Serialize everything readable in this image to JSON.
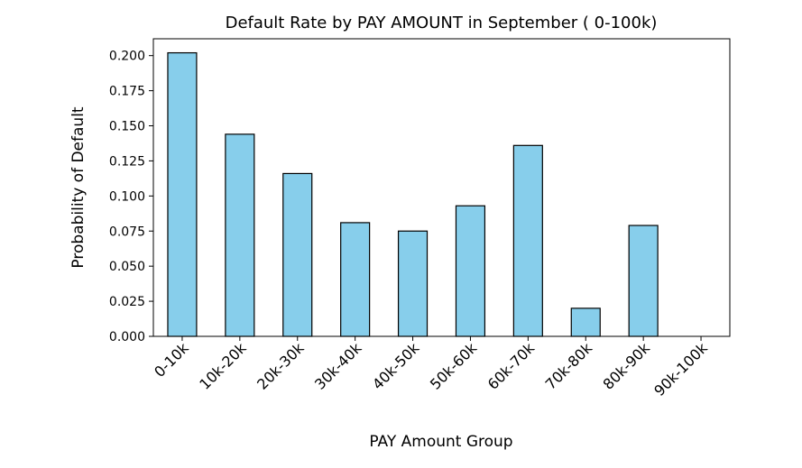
{
  "chart_data": {
    "type": "bar",
    "title": "Default Rate by PAY AMOUNT in September ( 0-100k)",
    "xlabel": "PAY Amount Group",
    "ylabel": "Probability of Default",
    "categories": [
      "0-10k",
      "10k-20k",
      "20k-30k",
      "30k-40k",
      "40k-50k",
      "50k-60k",
      "60k-70k",
      "70k-80k",
      "80k-90k",
      "90k-100k"
    ],
    "values": [
      0.202,
      0.144,
      0.116,
      0.081,
      0.075,
      0.093,
      0.136,
      0.02,
      0.079,
      0.0
    ],
    "ylim": [
      0,
      0.212
    ],
    "yticks": [
      "0.000",
      "0.025",
      "0.050",
      "0.075",
      "0.100",
      "0.125",
      "0.150",
      "0.175",
      "0.200"
    ],
    "bar_color": "#87CEEB",
    "edge_color": "#000000",
    "grid": false,
    "legend": "none"
  }
}
